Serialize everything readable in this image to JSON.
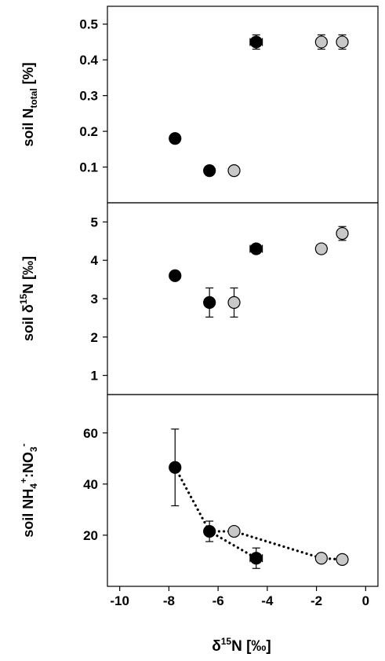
{
  "chart_data": [
    {
      "type": "scatter",
      "ylabel": "soil N_total [%]",
      "ylim": [
        0,
        0.55
      ],
      "yticks": [
        "0.1",
        "0.2",
        "0.3",
        "0.4",
        "0.5"
      ],
      "series": [
        {
          "color": "#000000",
          "points": [
            {
              "x": -7.75,
              "y": 0.18,
              "xerr": 0,
              "yerr": 0
            },
            {
              "x": -6.35,
              "y": 0.09,
              "xerr": 0,
              "yerr": 0
            },
            {
              "x": -4.45,
              "y": 0.45,
              "xerr": 0.25,
              "yerr": 0.02
            }
          ]
        },
        {
          "color": "#c8c8c8",
          "points": [
            {
              "x": -5.35,
              "y": 0.09,
              "xerr": 0,
              "yerr": 0
            },
            {
              "x": -1.8,
              "y": 0.45,
              "xerr": 0.15,
              "yerr": 0.02
            },
            {
              "x": -0.95,
              "y": 0.45,
              "xerr": 0,
              "yerr": 0.02
            }
          ]
        }
      ]
    },
    {
      "type": "scatter",
      "ylabel": "soil δ15N [‰]",
      "ylim": [
        0.5,
        5.5
      ],
      "yticks": [
        "1",
        "2",
        "3",
        "4",
        "5"
      ],
      "series": [
        {
          "color": "#000000",
          "points": [
            {
              "x": -7.75,
              "y": 3.6,
              "xerr": 0,
              "yerr": 0
            },
            {
              "x": -6.35,
              "y": 2.9,
              "xerr": 0,
              "yerr": 0.38
            },
            {
              "x": -4.45,
              "y": 4.3,
              "xerr": 0.25,
              "yerr": 0
            }
          ]
        },
        {
          "color": "#c8c8c8",
          "points": [
            {
              "x": -5.35,
              "y": 2.9,
              "xerr": 0,
              "yerr": 0.38
            },
            {
              "x": -1.8,
              "y": 4.3,
              "xerr": 0.2,
              "yerr": 0
            },
            {
              "x": -0.95,
              "y": 4.7,
              "xerr": 0,
              "yerr": 0.18
            }
          ]
        }
      ]
    },
    {
      "type": "scatter",
      "ylabel": "soil NH4+:NO3-",
      "ylim": [
        0,
        75
      ],
      "yticks": [
        "20",
        "40",
        "60"
      ],
      "xlabel": "δ15N [‰]",
      "xlim": [
        -10.5,
        0.5
      ],
      "xticks": [
        "-10",
        "-8",
        "-6",
        "-4",
        "-2",
        "0"
      ],
      "series": [
        {
          "color": "#000000",
          "points": [
            {
              "x": -7.75,
              "y": 46.5,
              "xerr": 0,
              "yerr": 15
            },
            {
              "x": -6.35,
              "y": 21.5,
              "xerr": 0,
              "yerr": 4
            },
            {
              "x": -4.45,
              "y": 11,
              "xerr": 0.25,
              "yerr": 4
            }
          ]
        },
        {
          "color": "#c8c8c8",
          "points": [
            {
              "x": -5.35,
              "y": 21.5,
              "xerr": 0,
              "yerr": 0
            },
            {
              "x": -1.8,
              "y": 11,
              "xerr": 0.15,
              "yerr": 0
            },
            {
              "x": -0.95,
              "y": 10.5,
              "xerr": 0,
              "yerr": 0
            }
          ]
        }
      ],
      "trendlines": [
        {
          "style": "dotted",
          "x": [
            -7.75,
            -6.35,
            -4.45
          ],
          "y": [
            46.5,
            21.5,
            11
          ]
        },
        {
          "style": "dotted",
          "x": [
            -6.35,
            -5.35,
            -1.8,
            -0.95
          ],
          "y": [
            21.5,
            21.5,
            11,
            10.5
          ]
        }
      ]
    }
  ]
}
